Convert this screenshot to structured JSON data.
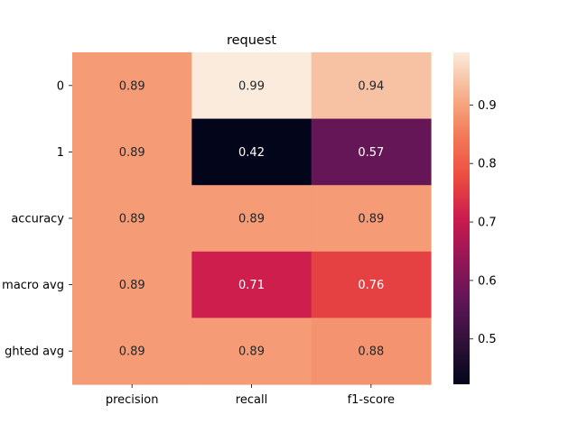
{
  "chart_data": {
    "type": "heatmap",
    "title": "request",
    "xlabel": "",
    "ylabel": "",
    "columns": [
      "precision",
      "recall",
      "f1-score"
    ],
    "rows": [
      "0",
      "1",
      "accuracy",
      "macro avg",
      "ghted avg"
    ],
    "values": [
      [
        0.89,
        0.99,
        0.94
      ],
      [
        0.89,
        0.42,
        0.57
      ],
      [
        0.89,
        0.89,
        0.89
      ],
      [
        0.89,
        0.71,
        0.76
      ],
      [
        0.89,
        0.89,
        0.88
      ]
    ],
    "cell_labels": [
      [
        "0.89",
        "0.99",
        "0.94"
      ],
      [
        "0.89",
        "0.42",
        "0.57"
      ],
      [
        "0.89",
        "0.89",
        "0.89"
      ],
      [
        "0.89",
        "0.71",
        "0.76"
      ],
      [
        "0.89",
        "0.89",
        "0.88"
      ]
    ],
    "colorbar": {
      "range": [
        0.4225,
        0.99
      ],
      "ticks": [
        0.5,
        0.6,
        0.7,
        0.8,
        0.9
      ],
      "tick_labels": [
        "0.5",
        "0.6",
        "0.7",
        "0.8",
        "0.9"
      ],
      "colormap": "rocket"
    },
    "grid": false,
    "legend": "colorbar-right"
  }
}
